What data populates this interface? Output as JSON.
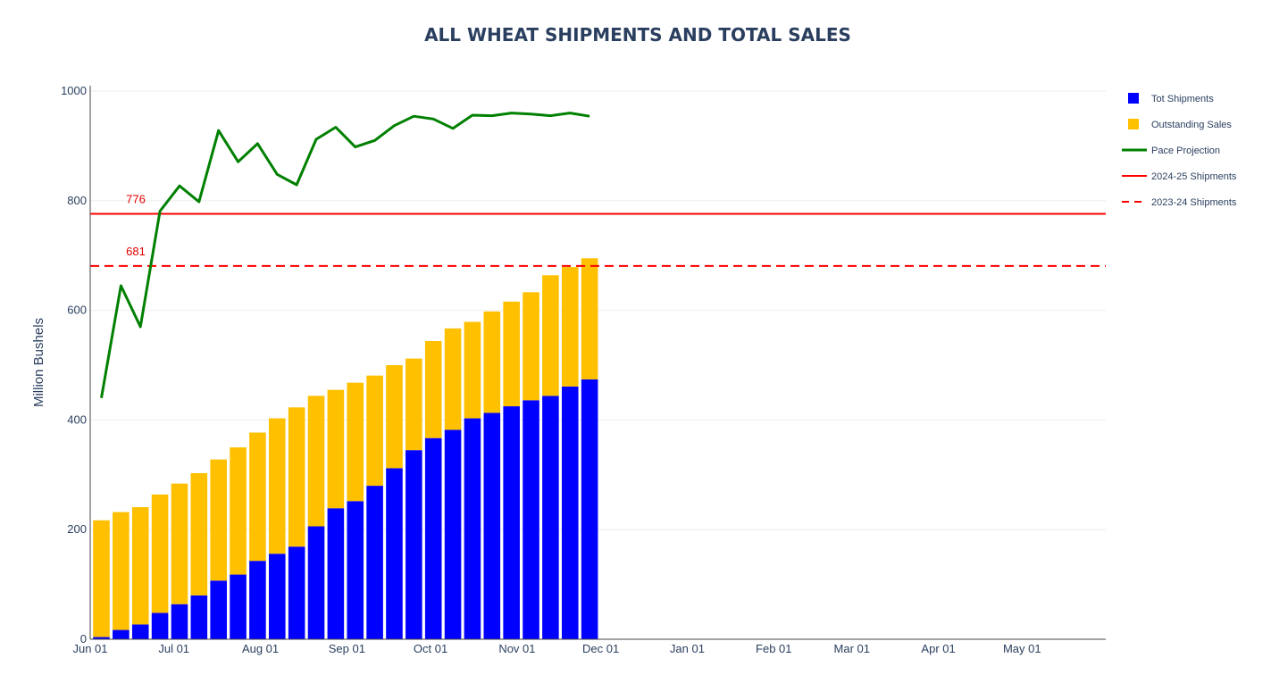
{
  "chart_data": {
    "type": "bar",
    "title": "ALL WHEAT SHIPMENTS AND TOTAL SALES",
    "ylabel": "Million Bushels",
    "xlabel": "",
    "ylim": [
      0,
      1000
    ],
    "xlim": [
      "2025-06-01",
      "2026-05-31"
    ],
    "barmode": "stack",
    "grid": "y",
    "legend_position": "right",
    "y_ticks": [
      0,
      200,
      400,
      600,
      800,
      1000
    ],
    "x_ticks": [
      {
        "date": "2025-06-01",
        "label": "Jun 01"
      },
      {
        "date": "2025-07-01",
        "label": "Jul 01"
      },
      {
        "date": "2025-08-01",
        "label": "Aug 01"
      },
      {
        "date": "2025-09-01",
        "label": "Sep 01"
      },
      {
        "date": "2025-10-01",
        "label": "Oct 01"
      },
      {
        "date": "2025-11-01",
        "label": "Nov 01"
      },
      {
        "date": "2025-12-01",
        "label": "Dec 01"
      },
      {
        "date": "2026-01-01",
        "label": "Jan 01"
      },
      {
        "date": "2026-02-01",
        "label": "Feb 01"
      },
      {
        "date": "2026-03-01",
        "label": "Mar 01"
      },
      {
        "date": "2026-04-01",
        "label": "Apr 01"
      },
      {
        "date": "2026-05-01",
        "label": "May 01"
      }
    ],
    "x": [
      "2025-06-05",
      "2025-06-12",
      "2025-06-19",
      "2025-06-26",
      "2025-07-03",
      "2025-07-10",
      "2025-07-17",
      "2025-07-24",
      "2025-07-31",
      "2025-08-07",
      "2025-08-14",
      "2025-08-21",
      "2025-08-28",
      "2025-09-04",
      "2025-09-11",
      "2025-09-18",
      "2025-09-25",
      "2025-10-02",
      "2025-10-09",
      "2025-10-16",
      "2025-10-23",
      "2025-10-30",
      "2025-11-06",
      "2025-11-13",
      "2025-11-20",
      "2025-11-27"
    ],
    "series": [
      {
        "name": "Tot Shipments",
        "kind": "bar",
        "color": "#0000ff",
        "values": [
          4,
          17,
          27,
          48,
          64,
          80,
          107,
          118,
          143,
          156,
          169,
          206,
          239,
          252,
          280,
          312,
          345,
          367,
          382,
          403,
          413,
          425,
          436,
          444,
          461,
          474
        ]
      },
      {
        "name": "Outstanding Sales",
        "kind": "bar",
        "color": "#ffc000",
        "values": [
          213,
          215,
          214,
          216,
          220,
          223,
          221,
          232,
          234,
          247,
          254,
          238,
          216,
          216,
          201,
          188,
          167,
          177,
          185,
          176,
          185,
          191,
          197,
          220,
          218,
          221
        ]
      },
      {
        "name": "Pace Projection",
        "kind": "line",
        "color": "#008000",
        "values": [
          440,
          645,
          570,
          781,
          827,
          798,
          928,
          871,
          904,
          848,
          829,
          912,
          934,
          898,
          910,
          937,
          954,
          949,
          932,
          956,
          955,
          960,
          958,
          955,
          960,
          954
        ]
      },
      {
        "name": "2024-25 Shipments",
        "kind": "hline",
        "color": "#ff0000",
        "dash": "solid",
        "value": 776,
        "label": "776"
      },
      {
        "name": "2023-24 Shipments",
        "kind": "hline",
        "color": "#ff0000",
        "dash": "dashed",
        "value": 681,
        "label": "681"
      }
    ]
  }
}
